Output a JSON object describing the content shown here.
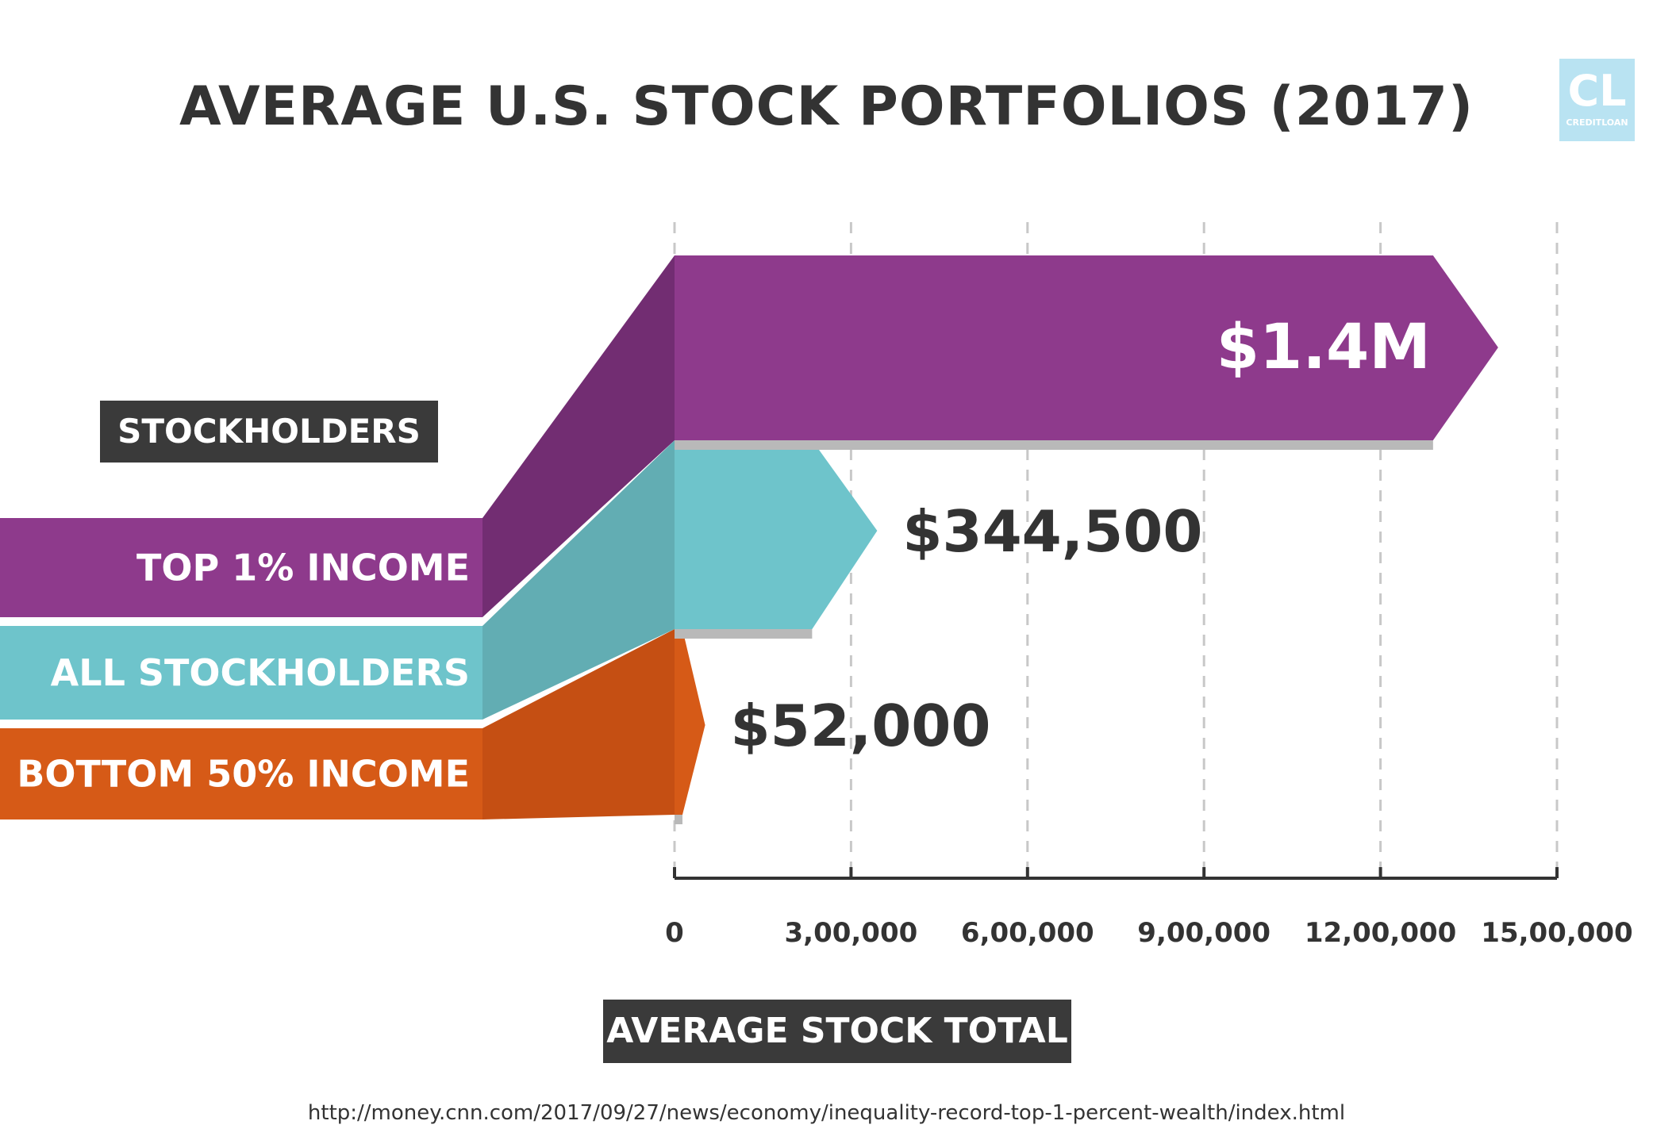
{
  "title": "AVERAGE U.S. STOCK PORTFOLIOS (2017)",
  "logo": {
    "initials": "CL",
    "name": "CREDITLOAN"
  },
  "legend_title": "STOCKHOLDERS",
  "source": "http://money.cnn.com/2017/09/27/news/economy/inequality-record-top-1-percent-wealth/index.html",
  "colors": {
    "top": "#8e3a8c",
    "top_dark": "#722d72",
    "all": "#6ec4cb",
    "all_dark": "#62adb3",
    "bottom": "#d65a17",
    "bottom_dark": "#c54f13",
    "shadow": "#b9b9b9",
    "grid": "#c8c8c8",
    "axis": "#333333",
    "text": "#333333"
  },
  "chart_data": {
    "type": "bar",
    "orientation": "horizontal",
    "xlabel": "AVERAGE STOCK TOTAL",
    "xlim": [
      0,
      1500000
    ],
    "xticks": [
      0,
      300000,
      600000,
      900000,
      1200000,
      1500000
    ],
    "xtick_labels": [
      "0",
      "3,00,000",
      "6,00,000",
      "9,00,000",
      "12,00,000",
      "15,00,000"
    ],
    "grid": true,
    "series": [
      {
        "name": "TOP 1% INCOME",
        "value": 1400000,
        "value_label": "$1.4M"
      },
      {
        "name": "ALL STOCKHOLDERS",
        "value": 344500,
        "value_label": "$344,500"
      },
      {
        "name": "BOTTOM 50% INCOME",
        "value": 52000,
        "value_label": "$52,000"
      }
    ]
  }
}
